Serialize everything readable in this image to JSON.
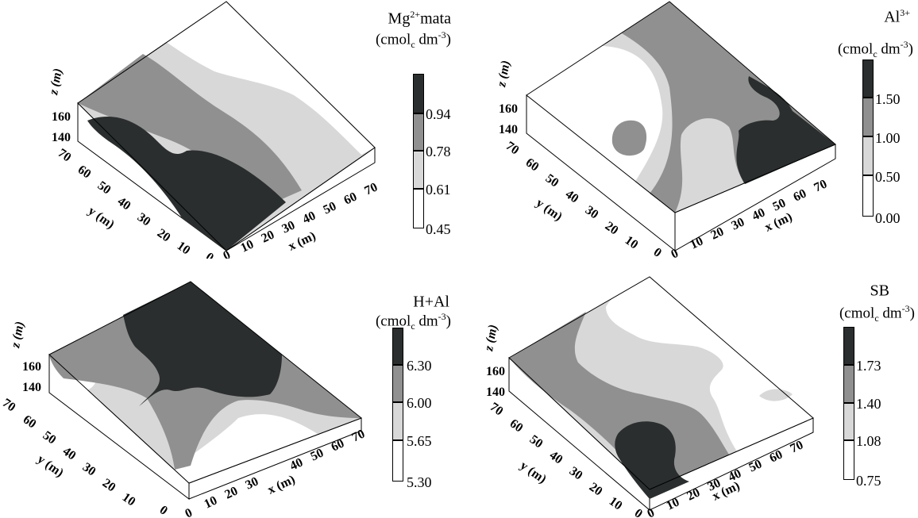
{
  "chart_data": [
    {
      "type": "heatmap",
      "legend": {
        "title_main": "Mg",
        "title_sup": "2+",
        "title_rest": "mata",
        "unit_pre": "(cmol",
        "unit_sub": "c",
        "unit_mid": " dm",
        "unit_sup": "-3",
        "unit_post": ")",
        "levels": [
          "0.94",
          "0.78",
          "0.61",
          "0.45"
        ],
        "colors": [
          "#2a2e2e",
          "#909090",
          "#d8d8d8",
          "#ffffff"
        ],
        "placement": "right"
      },
      "x_axis": {
        "title": "x (m)",
        "ticks": [
          "0",
          "10",
          "20",
          "30",
          "40",
          "50",
          "60",
          "70"
        ]
      },
      "y_axis": {
        "title": "y (m)",
        "ticks": [
          "0",
          "10",
          "20",
          "30",
          "40",
          "50",
          "60",
          "70"
        ]
      },
      "z_axis": {
        "title": "z (m)",
        "ticks": [
          "140",
          "160"
        ]
      }
    },
    {
      "type": "heatmap",
      "legend": {
        "title_main": "Al",
        "title_sup": "3+",
        "title_rest": "",
        "unit_pre": "(cmol",
        "unit_sub": "c",
        "unit_mid": " dm",
        "unit_sup": "-3",
        "unit_post": ")",
        "levels": [
          "1.50",
          "1.00",
          "0.50",
          "0.00"
        ],
        "colors": [
          "#2a2e2e",
          "#909090",
          "#d8d8d8",
          "#ffffff"
        ],
        "placement": "right"
      },
      "x_axis": {
        "title": "x (m)",
        "ticks": [
          "0",
          "10",
          "20",
          "30",
          "40",
          "50",
          "60",
          "70"
        ]
      },
      "y_axis": {
        "title": "y (m)",
        "ticks": [
          "0",
          "10",
          "20",
          "30",
          "40",
          "50",
          "60",
          "70"
        ]
      },
      "z_axis": {
        "title": "z (m)",
        "ticks": [
          "140",
          "160"
        ]
      }
    },
    {
      "type": "heatmap",
      "legend": {
        "title_main": "H+Al",
        "title_sup": "",
        "title_rest": "",
        "unit_pre": "(cmol",
        "unit_sub": "c",
        "unit_mid": " dm",
        "unit_sup": "-3",
        "unit_post": ")",
        "levels": [
          "6.30",
          "6.00",
          "5.65",
          "5.30"
        ],
        "colors": [
          "#2a2e2e",
          "#909090",
          "#d8d8d8",
          "#ffffff"
        ],
        "placement": "right"
      },
      "x_axis": {
        "title": "x (m)",
        "ticks": [
          "0",
          "10",
          "20",
          "30",
          "40",
          "50",
          "60",
          "70"
        ]
      },
      "y_axis": {
        "title": "y (m)",
        "ticks": [
          "0",
          "10",
          "20",
          "30",
          "40",
          "50",
          "60",
          "70"
        ]
      },
      "z_axis": {
        "title": "z (m)",
        "ticks": [
          "140",
          "160"
        ]
      }
    },
    {
      "type": "heatmap",
      "legend": {
        "title_main": "SB",
        "title_sup": "",
        "title_rest": "",
        "unit_pre": "(cmol",
        "unit_sub": "c",
        "unit_mid": " dm",
        "unit_sup": "-3",
        "unit_post": ")",
        "levels": [
          "1.73",
          "1.40",
          "1.08",
          "0.75"
        ],
        "colors": [
          "#2a2e2e",
          "#909090",
          "#d8d8d8",
          "#ffffff"
        ],
        "placement": "right"
      },
      "x_axis": {
        "title": "x (m)",
        "ticks": [
          "0",
          "10",
          "20",
          "30",
          "40",
          "50",
          "60",
          "70"
        ]
      },
      "y_axis": {
        "title": "y (m)",
        "ticks": [
          "0",
          "10",
          "20",
          "30",
          "40",
          "50",
          "60",
          "70"
        ]
      },
      "z_axis": {
        "title": "z (m)",
        "ticks": [
          "140",
          "160"
        ]
      }
    }
  ]
}
